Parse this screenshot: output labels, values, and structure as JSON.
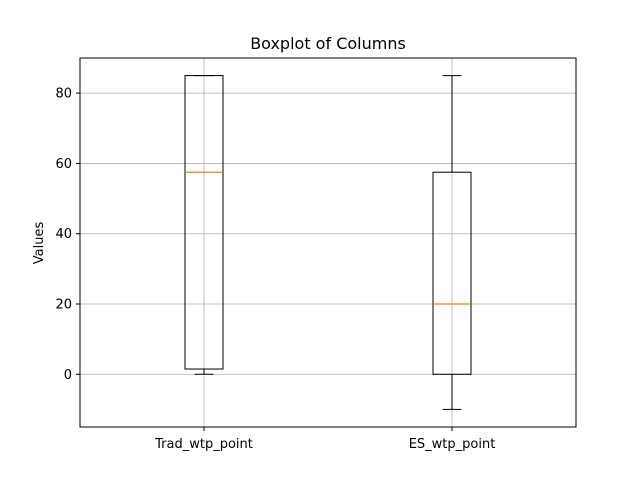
{
  "chart_data": {
    "type": "boxplot",
    "title": "Boxplot of Columns",
    "xlabel": "",
    "ylabel": "Values",
    "ylim": [
      -15,
      90
    ],
    "yticks": [
      0,
      20,
      40,
      60,
      80
    ],
    "grid": true,
    "categories": [
      "Trad_wtp_point",
      "ES_wtp_point"
    ],
    "boxes": [
      {
        "label": "Trad_wtp_point",
        "whisker_low": 0,
        "q1": 1.5,
        "median": 57.5,
        "q3": 85,
        "whisker_high": 85
      },
      {
        "label": "ES_wtp_point",
        "whisker_low": -10,
        "q1": 0,
        "median": 20,
        "q3": 57.5,
        "whisker_high": 85
      }
    ],
    "colors": {
      "box": "#000000",
      "median": "#ff7f0e",
      "grid": "#b0b0b0"
    }
  }
}
